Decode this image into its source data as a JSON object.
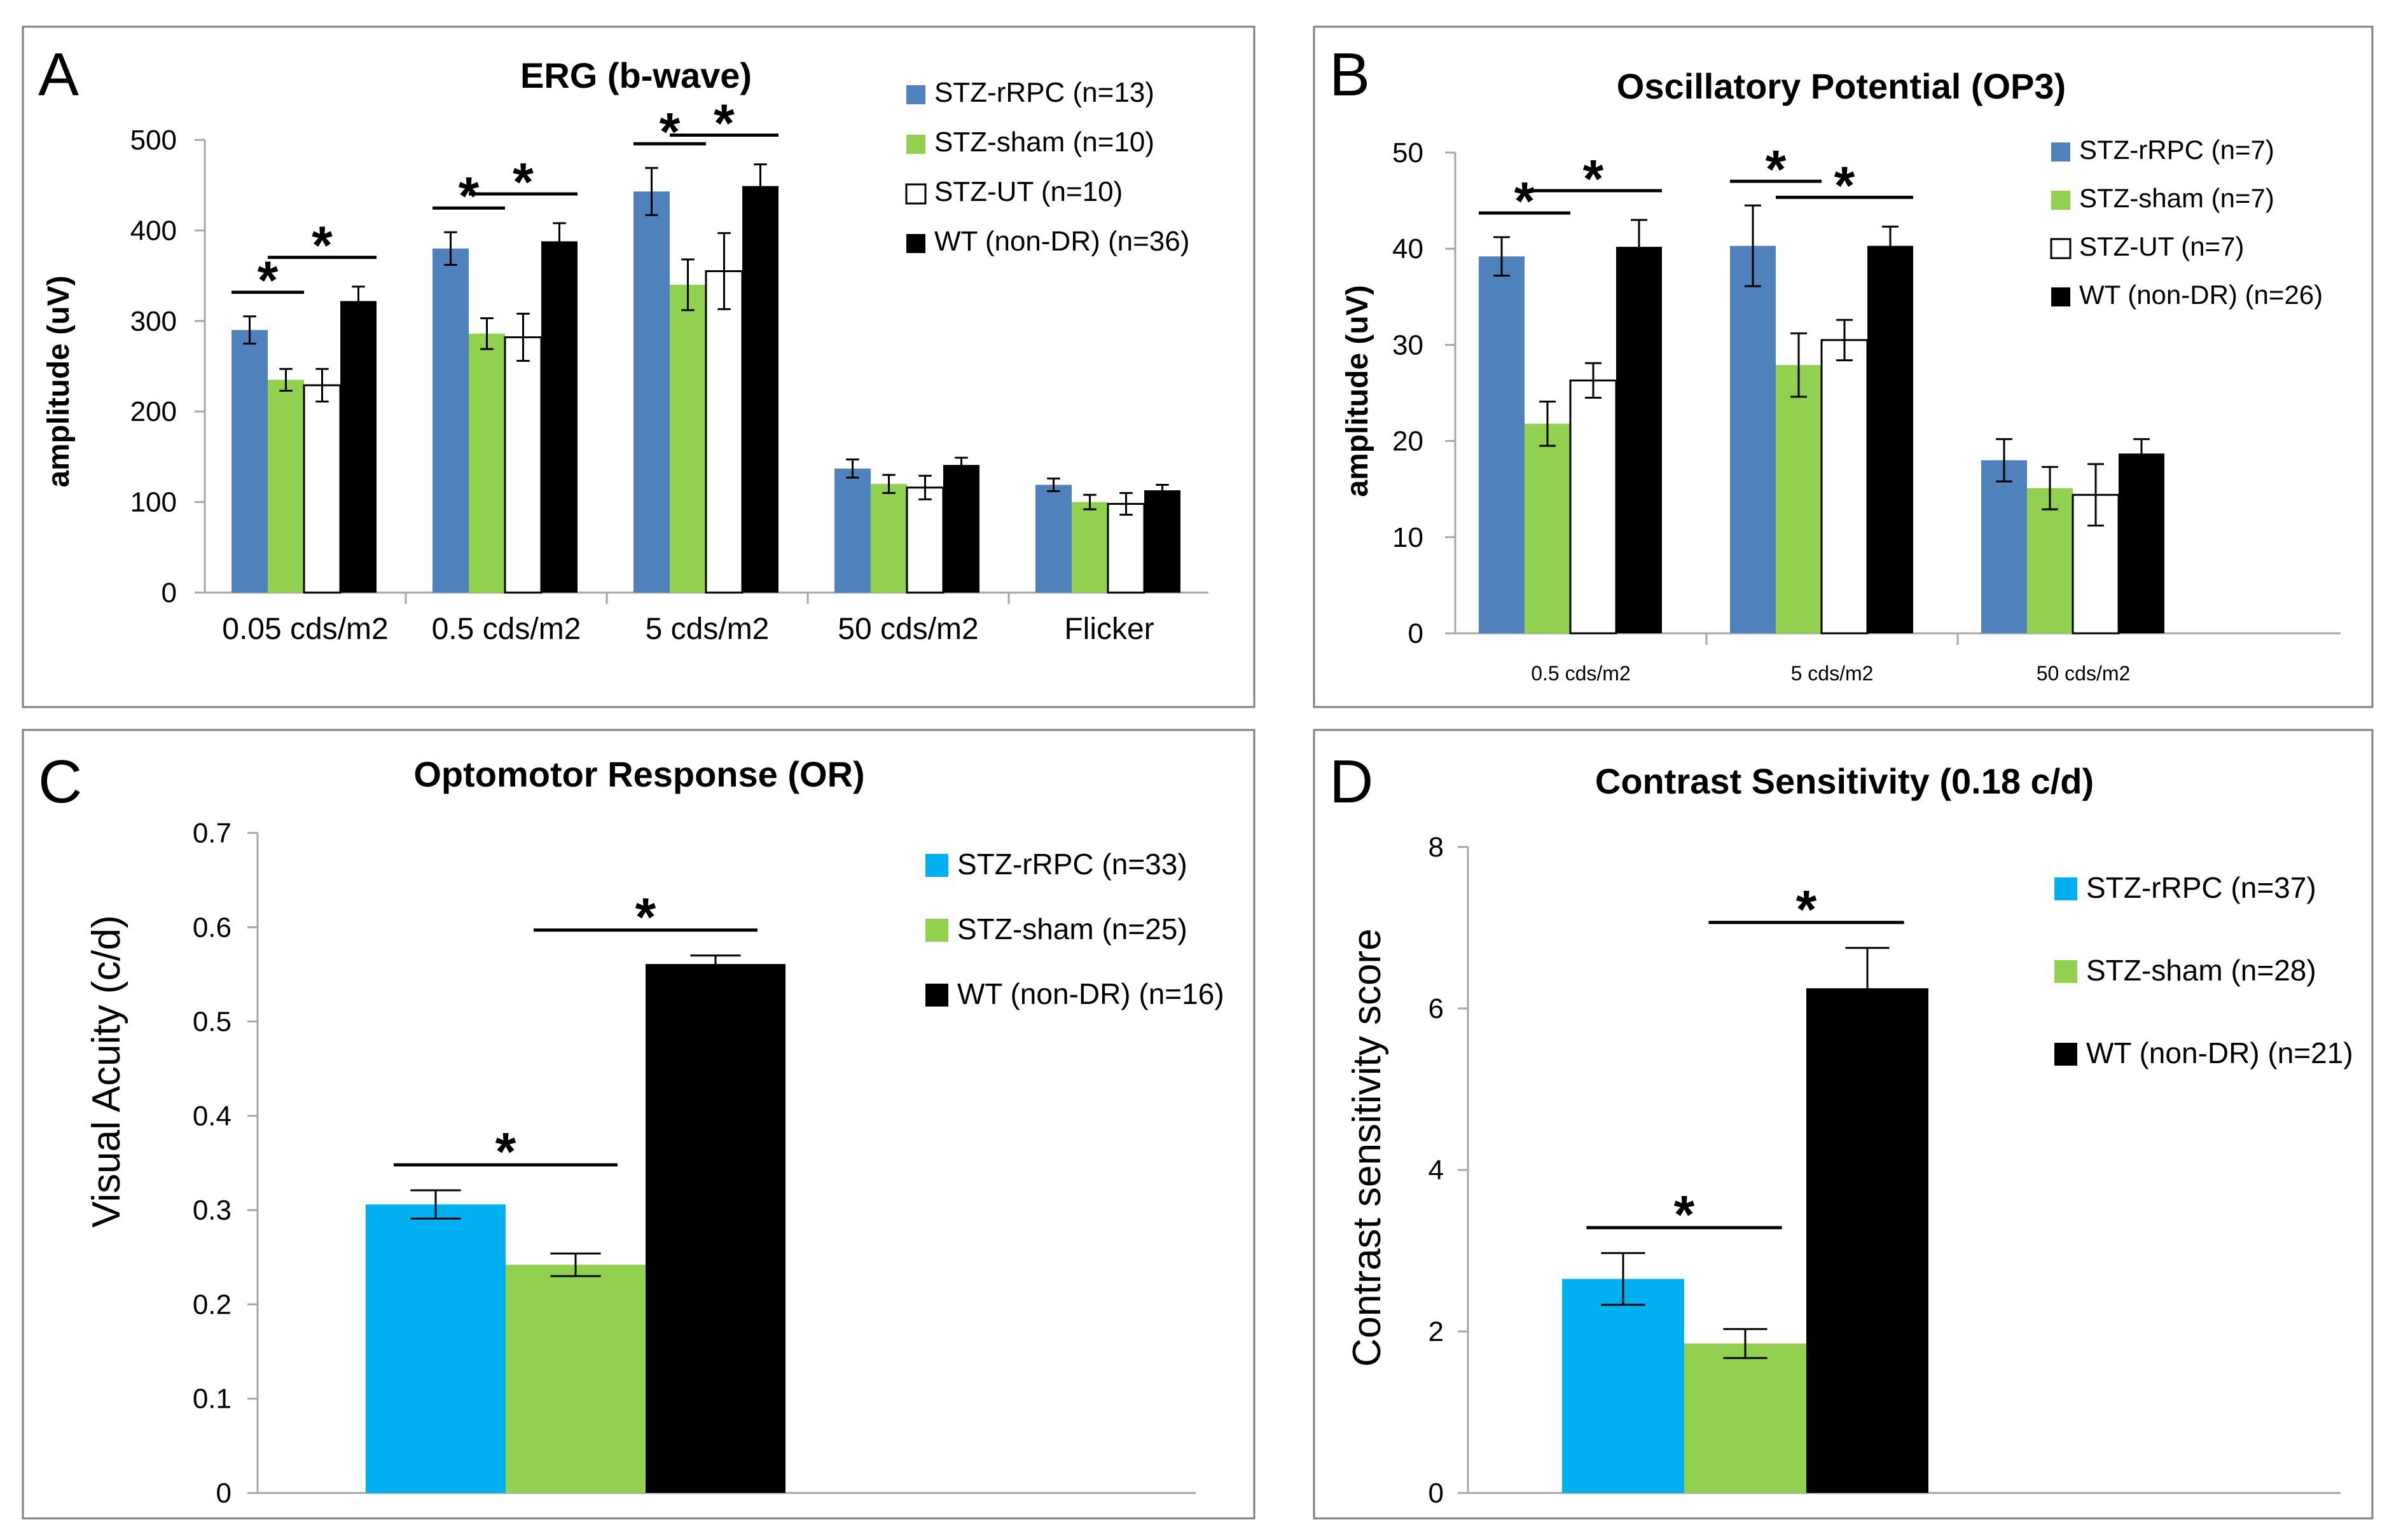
{
  "colors": {
    "blue": "#4f81bd",
    "cyan": "#00b0f0",
    "green": "#92d050",
    "white": "#ffffff",
    "black": "#000000",
    "frame": "#7f7f7f",
    "axis": "#a6a6a6"
  },
  "chart_data": [
    {
      "panel": "A",
      "type": "bar",
      "title": "ERG (b-wave)",
      "xlabel": "",
      "ylabel": "amplitude (uV)",
      "ylim": [
        0,
        500
      ],
      "yticks": [
        0,
        100,
        200,
        300,
        400,
        500
      ],
      "yticklabels": [
        "0",
        "100",
        "200",
        "300",
        "400",
        "500"
      ],
      "grid": false,
      "legend_position": "top-right",
      "categories": [
        "0.05 cds/m2",
        "0.5 cds/m2",
        "5 cds/m2",
        "50 cds/m2",
        "Flicker"
      ],
      "series": [
        {
          "name": "STZ-rRPC (n=13)",
          "color": "blue",
          "values": [
            290,
            380,
            443,
            137,
            119
          ],
          "errors": [
            15,
            18,
            26,
            10,
            7
          ]
        },
        {
          "name": "STZ-sham (n=10)",
          "color": "green",
          "values": [
            235,
            286,
            340,
            120,
            100
          ],
          "errors": [
            12,
            17,
            28,
            10,
            8
          ]
        },
        {
          "name": "STZ-UT (n=10)",
          "color": "white",
          "values": [
            229,
            282,
            355,
            116,
            98
          ],
          "errors": [
            18,
            26,
            42,
            13,
            12
          ]
        },
        {
          "name": "WT (non-DR) (n=36)",
          "color": "black",
          "values": [
            322,
            388,
            449,
            141,
            113
          ],
          "errors": [
            16,
            20,
            24,
            8,
            6
          ]
        }
      ],
      "significance": [
        {
          "category": 0,
          "from": 0,
          "to": 1,
          "label": "*"
        },
        {
          "category": 0,
          "from": 1,
          "to": 3,
          "label": "*"
        },
        {
          "category": 1,
          "from": 0,
          "to": 1,
          "label": "*"
        },
        {
          "category": 1,
          "from": 1,
          "to": 3,
          "label": "*"
        },
        {
          "category": 2,
          "from": 0,
          "to": 1,
          "label": "*"
        },
        {
          "category": 2,
          "from": 1,
          "to": 3,
          "label": "*"
        }
      ]
    },
    {
      "panel": "B",
      "type": "bar",
      "title": "Oscillatory Potential (OP3)",
      "xlabel": "",
      "ylabel": "amplitude (uV)",
      "ylim": [
        0,
        50
      ],
      "yticks": [
        0,
        10,
        20,
        30,
        40,
        50
      ],
      "yticklabels": [
        "0",
        "10",
        "20",
        "30",
        "40",
        "50"
      ],
      "grid": false,
      "legend_position": "top-right",
      "categories": [
        "0.5 cds/m2",
        "5 cds/m2",
        "50 cds/m2"
      ],
      "series": [
        {
          "name": "STZ-rRPC (n=7)",
          "color": "blue",
          "values": [
            39.2,
            40.3,
            18.0
          ],
          "errors": [
            2.0,
            4.2,
            2.2
          ]
        },
        {
          "name": "STZ-sham (n=7)",
          "color": "green",
          "values": [
            21.8,
            27.9,
            15.1
          ],
          "errors": [
            2.3,
            3.3,
            2.2
          ]
        },
        {
          "name": "STZ-UT (n=7)",
          "color": "white",
          "values": [
            26.3,
            30.5,
            14.4
          ],
          "errors": [
            1.8,
            2.1,
            3.2
          ]
        },
        {
          "name": "WT (non-DR) (n=26)",
          "color": "black",
          "values": [
            40.2,
            40.3,
            18.7
          ],
          "errors": [
            2.8,
            2.0,
            1.5
          ]
        }
      ],
      "significance": [
        {
          "category": 0,
          "from": 0,
          "to": 1,
          "label": "*"
        },
        {
          "category": 0,
          "from": 1,
          "to": 3,
          "label": "*"
        },
        {
          "category": 1,
          "from": 0,
          "to": 1,
          "label": "*"
        },
        {
          "category": 1,
          "from": 1,
          "to": 3,
          "label": "*"
        }
      ]
    },
    {
      "panel": "C",
      "type": "bar",
      "title": "Optomotor Response (OR)",
      "xlabel": "",
      "ylabel": "Visual Acuity (c/d)",
      "ylim": [
        0,
        0.7
      ],
      "yticks": [
        0,
        0.1,
        0.2,
        0.3,
        0.4,
        0.5,
        0.6,
        0.7
      ],
      "yticklabels": [
        "0",
        "0.1",
        "0.2",
        "0.3",
        "0.4",
        "0.5",
        "0.6",
        "0.7"
      ],
      "grid": false,
      "legend_position": "top-right",
      "categories": [
        ""
      ],
      "series": [
        {
          "name": "STZ-rRPC (n=33)",
          "color": "cyan",
          "values": [
            0.306
          ],
          "errors": [
            0.015
          ]
        },
        {
          "name": "STZ-sham (n=25)",
          "color": "green",
          "values": [
            0.242
          ],
          "errors": [
            0.012
          ]
        },
        {
          "name": "WT (non-DR) (n=16)",
          "color": "black",
          "values": [
            0.561
          ],
          "errors": [
            0.009
          ]
        }
      ],
      "significance": [
        {
          "category": 0,
          "from": 0,
          "to": 1,
          "label": "*"
        },
        {
          "category": 0,
          "from": 1,
          "to": 2,
          "label": "*"
        }
      ]
    },
    {
      "panel": "D",
      "type": "bar",
      "title": "Contrast Sensitivity (0.18 c/d)",
      "xlabel": "",
      "ylabel": "Contrast sensitivity score",
      "ylim": [
        0,
        8
      ],
      "yticks": [
        0,
        2,
        4,
        6,
        8
      ],
      "yticklabels": [
        "0",
        "2",
        "4",
        "6",
        "8"
      ],
      "grid": false,
      "legend_position": "top-right",
      "categories": [
        ""
      ],
      "series": [
        {
          "name": "STZ-rRPC (n=37)",
          "color": "cyan",
          "values": [
            2.65
          ],
          "errors": [
            0.32
          ]
        },
        {
          "name": "STZ-sham (n=28)",
          "color": "green",
          "values": [
            1.85
          ],
          "errors": [
            0.18
          ]
        },
        {
          "name": "WT (non-DR) (n=21)",
          "color": "black",
          "values": [
            6.25
          ],
          "errors": [
            0.5
          ]
        }
      ],
      "significance": [
        {
          "category": 0,
          "from": 0,
          "to": 1,
          "label": "*"
        },
        {
          "category": 0,
          "from": 1,
          "to": 2,
          "label": "*"
        }
      ]
    }
  ]
}
